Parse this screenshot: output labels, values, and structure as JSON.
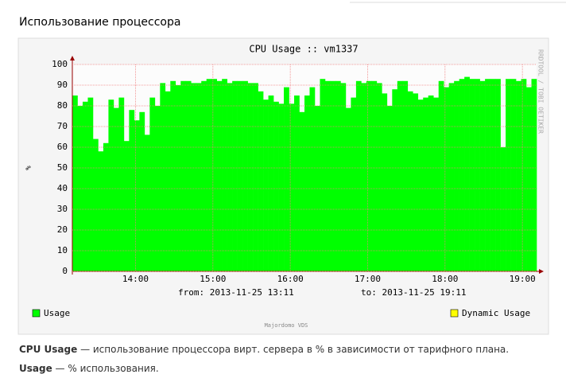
{
  "heading": "Использование процессора",
  "chart_data": {
    "type": "step-area",
    "title": "CPU Usage :: vm1337",
    "y_label": "%",
    "watermark": "RRDTOOL / TOBI OETIKER",
    "from": "from: 2013-11-25 13:11",
    "to": "to: 2013-11-25 19:11",
    "footer": "Majordomo VDS",
    "xlim": [
      "13:11",
      "19:11"
    ],
    "xticks": [
      "14:00",
      "15:00",
      "16:00",
      "17:00",
      "18:00",
      "19:00"
    ],
    "ylim": [
      0,
      100
    ],
    "yticks": [
      0,
      10,
      20,
      30,
      40,
      50,
      60,
      70,
      80,
      90,
      100
    ],
    "grid": true,
    "x": [
      "13:11",
      "13:15",
      "13:19",
      "13:23",
      "13:27",
      "13:31",
      "13:35",
      "13:39",
      "13:43",
      "13:47",
      "13:51",
      "13:55",
      "13:59",
      "14:03",
      "14:07",
      "14:11",
      "14:15",
      "14:19",
      "14:23",
      "14:27",
      "14:31",
      "14:35",
      "14:39",
      "14:43",
      "14:47",
      "14:51",
      "14:55",
      "14:59",
      "15:03",
      "15:07",
      "15:11",
      "15:15",
      "15:19",
      "15:23",
      "15:27",
      "15:31",
      "15:35",
      "15:39",
      "15:43",
      "15:47",
      "15:51",
      "15:55",
      "15:59",
      "16:03",
      "16:07",
      "16:11",
      "16:15",
      "16:19",
      "16:23",
      "16:27",
      "16:31",
      "16:35",
      "16:39",
      "16:43",
      "16:47",
      "16:51",
      "16:55",
      "16:59",
      "17:03",
      "17:07",
      "17:11",
      "17:15",
      "17:19",
      "17:23",
      "17:27",
      "17:31",
      "17:35",
      "17:39",
      "17:43",
      "17:47",
      "17:51",
      "17:55",
      "17:59",
      "18:03",
      "18:07",
      "18:11",
      "18:15",
      "18:19",
      "18:23",
      "18:27",
      "18:31",
      "18:35",
      "18:39",
      "18:43",
      "18:47",
      "18:51",
      "18:55",
      "18:59",
      "19:03",
      "19:07"
    ],
    "series": [
      {
        "name": "Usage",
        "color": "#00ff00",
        "values": [
          85,
          80,
          82,
          84,
          64,
          58,
          62,
          83,
          79,
          84,
          63,
          78,
          73,
          77,
          66,
          84,
          80,
          91,
          87,
          92,
          90,
          92,
          92,
          91,
          91,
          92,
          93,
          93,
          92,
          93,
          91,
          92,
          92,
          92,
          91,
          91,
          87,
          83,
          85,
          82,
          81,
          89,
          81,
          85,
          77,
          85,
          89,
          80,
          93,
          92,
          92,
          92,
          91,
          79,
          84,
          92,
          91,
          92,
          92,
          91,
          86,
          80,
          88,
          92,
          92,
          87,
          86,
          83,
          84,
          85,
          84,
          92,
          89,
          91,
          92,
          93,
          94,
          93,
          93,
          92,
          93,
          93,
          93,
          60,
          93,
          93,
          92,
          93,
          89,
          93
        ]
      },
      {
        "name": "Dynamic Usage",
        "color": "#ffff00",
        "values": [
          null,
          null,
          null,
          null,
          null,
          null,
          null,
          null,
          null,
          null,
          null,
          null,
          null,
          null,
          null,
          null,
          null,
          null,
          null,
          null,
          null,
          null,
          null,
          null,
          null,
          null,
          null,
          null,
          null,
          null,
          null,
          null,
          null,
          null,
          null,
          null,
          null,
          null,
          null,
          null,
          null,
          null,
          null,
          null,
          null,
          null,
          null,
          null,
          null,
          null,
          null,
          null,
          null,
          null,
          null,
          null,
          null,
          null,
          null,
          null,
          null,
          null,
          null,
          null,
          null,
          null,
          null,
          null,
          null,
          null,
          null,
          null,
          null,
          null,
          null,
          null,
          null,
          null,
          null,
          null,
          null,
          null,
          null,
          null,
          null,
          null,
          null,
          null,
          null,
          null
        ]
      }
    ]
  },
  "notes": [
    {
      "term": "CPU Usage",
      "text": " — использование процессора вирт. сервера в % в зависимости от тарифного плана."
    },
    {
      "term": "Usage",
      "text": " — % использования."
    }
  ]
}
